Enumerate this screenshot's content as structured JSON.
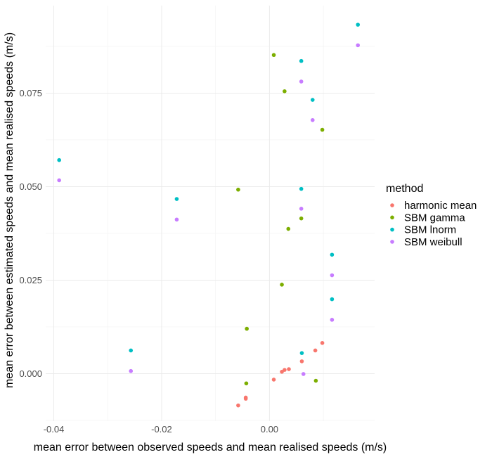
{
  "chart_data": {
    "type": "scatter",
    "xlabel": "mean error between observed speeds and mean realised speeds (m/s)",
    "ylabel": "mean error between estimated speeds and mean realised speeds (m/s)",
    "xlim": [
      -0.0415,
      0.0195
    ],
    "ylim": [
      -0.0127,
      0.0984
    ],
    "x_ticks": [
      -0.04,
      -0.02,
      0.0
    ],
    "x_tick_labels": [
      "-0.04",
      "-0.02",
      "0.00"
    ],
    "y_ticks": [
      0.0,
      0.025,
      0.05,
      0.075
    ],
    "y_tick_labels": [
      "0.000",
      "0.025",
      "0.050",
      "0.075"
    ],
    "grid": true,
    "legend": {
      "title": "method",
      "position": "right"
    },
    "series": [
      {
        "name": "harmonic mean",
        "color": "#F8766D",
        "points": [
          [
            -0.0058,
            -0.0085
          ],
          [
            -0.0044,
            -0.0067
          ],
          [
            -0.0044,
            -0.0064
          ],
          [
            0.0008,
            -0.0016
          ],
          [
            0.0023,
            0.0005
          ],
          [
            0.0028,
            0.001
          ],
          [
            0.0036,
            0.0012
          ],
          [
            0.006,
            0.0033
          ],
          [
            0.0085,
            0.0062
          ],
          [
            0.0098,
            0.0082
          ]
        ]
      },
      {
        "name": "SBM gamma",
        "color": "#7CAE00",
        "points": [
          [
            -0.0043,
            -0.0026
          ],
          [
            0.0086,
            -0.0019
          ],
          [
            -0.0042,
            0.012
          ],
          [
            0.0023,
            0.0238
          ],
          [
            0.0035,
            0.0387
          ],
          [
            0.0059,
            0.0415
          ],
          [
            -0.0058,
            0.0492
          ],
          [
            0.0098,
            0.0652
          ],
          [
            0.0028,
            0.0755
          ],
          [
            0.0008,
            0.0852
          ]
        ]
      },
      {
        "name": "SBM lnorm",
        "color": "#00BFC4",
        "points": [
          [
            -0.039,
            0.0571
          ],
          [
            -0.0257,
            0.0062
          ],
          [
            -0.0172,
            0.0467
          ],
          [
            0.006,
            0.0055
          ],
          [
            0.0059,
            0.0494
          ],
          [
            0.0116,
            0.0199
          ],
          [
            0.0116,
            0.0318
          ],
          [
            0.008,
            0.0732
          ],
          [
            0.0059,
            0.0836
          ],
          [
            0.0164,
            0.0933
          ]
        ]
      },
      {
        "name": "SBM weibull",
        "color": "#C77CFF",
        "points": [
          [
            -0.039,
            0.0517
          ],
          [
            -0.0257,
            0.0007
          ],
          [
            -0.0172,
            0.0412
          ],
          [
            0.0063,
            -0.0001
          ],
          [
            0.0059,
            0.0441
          ],
          [
            0.0116,
            0.0144
          ],
          [
            0.0116,
            0.0263
          ],
          [
            0.008,
            0.0678
          ],
          [
            0.0059,
            0.0781
          ],
          [
            0.0164,
            0.0878
          ]
        ]
      }
    ]
  }
}
